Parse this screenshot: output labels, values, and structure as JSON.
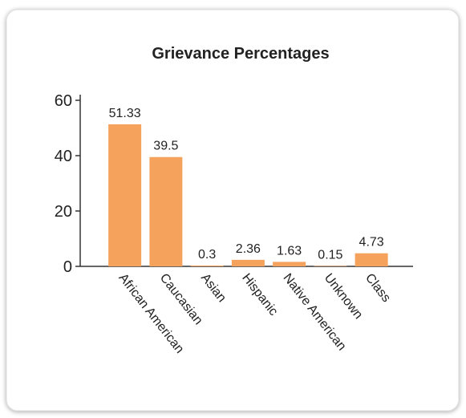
{
  "chart_data": {
    "type": "bar",
    "title": "Grievance Percentages",
    "categories": [
      "African American",
      "Caucasian",
      "Asian",
      "Hispanic",
      "Native American",
      "Unknown",
      "Class"
    ],
    "values": [
      51.33,
      39.5,
      0.3,
      2.36,
      1.63,
      0.15,
      4.73
    ],
    "color": "#f5a35c",
    "ylim": [
      0,
      60
    ],
    "yticks": [
      0,
      20,
      40,
      60
    ],
    "grid": false
  }
}
